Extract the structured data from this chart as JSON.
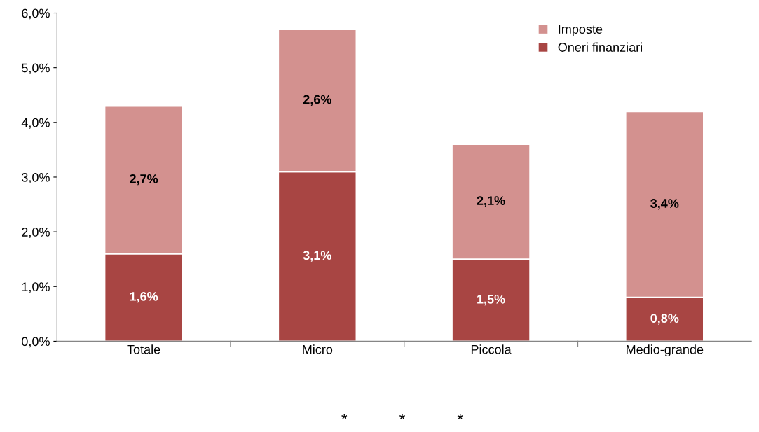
{
  "chart_data": {
    "type": "bar",
    "stacked": true,
    "categories": [
      "Totale",
      "Micro",
      "Piccola",
      "Medio-grande"
    ],
    "series": [
      {
        "name": "Oneri finanziari",
        "color": "#a84543",
        "values": [
          1.6,
          3.1,
          1.5,
          0.8
        ],
        "value_labels": [
          "1,6%",
          "3,1%",
          "1,5%",
          "0,8%"
        ]
      },
      {
        "name": "Imposte",
        "color": "#d3918f",
        "values": [
          2.7,
          2.6,
          2.1,
          3.4
        ],
        "value_labels": [
          "2,7%",
          "2,6%",
          "2,1%",
          "3,4%"
        ]
      }
    ],
    "ylim": [
      0,
      6
    ],
    "yticks": [
      {
        "value": 0,
        "label": "0,0%"
      },
      {
        "value": 1,
        "label": "1,0%"
      },
      {
        "value": 2,
        "label": "2,0%"
      },
      {
        "value": 3,
        "label": "3,0%"
      },
      {
        "value": 4,
        "label": "4,0%"
      },
      {
        "value": 5,
        "label": "5,0%"
      },
      {
        "value": 6,
        "label": "6,0%"
      }
    ],
    "grid": false,
    "legend": "top right",
    "annotations": [
      "*            *            *"
    ]
  }
}
